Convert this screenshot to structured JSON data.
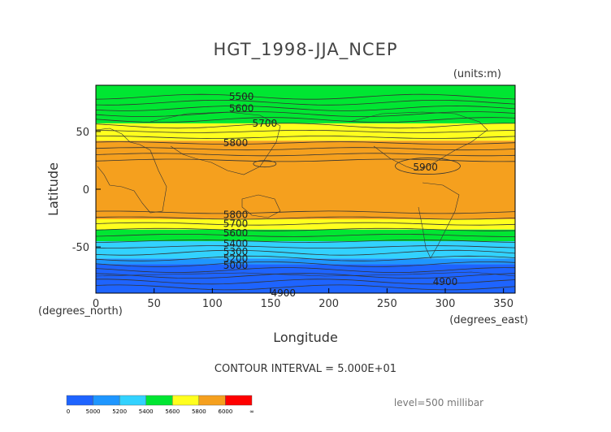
{
  "chart_data": {
    "type": "heatmap",
    "title": "HGT_1998-JJA_NCEP",
    "units": "(units:m)",
    "xlabel": "Longitude",
    "ylabel": "Latitude",
    "x_unit_label": "(degrees_east)",
    "y_unit_label": "(degrees_north)",
    "xlim": [
      0,
      360
    ],
    "ylim": [
      -90,
      90
    ],
    "x_ticks": [
      0,
      50,
      100,
      150,
      200,
      250,
      300,
      350
    ],
    "y_ticks": [
      -50,
      0,
      50
    ],
    "contour_interval_text": "CONTOUR INTERVAL = 5.000E+01",
    "level_text": "level=500 millibar",
    "colorbar": {
      "ticks": [
        "0",
        "5000",
        "5200",
        "5400",
        "5600",
        "5800",
        "6000",
        "∞"
      ],
      "colors": [
        "#1e64ff",
        "#1e96ff",
        "#32d2ff",
        "#00e632",
        "#ffff1e",
        "#f5a01e",
        "#ff0000"
      ]
    },
    "bands": [
      {
        "lat_from": 90,
        "lat_to": 57,
        "color": "#00e632"
      },
      {
        "lat_from": 57,
        "lat_to": 42,
        "color": "#ffff1e"
      },
      {
        "lat_from": 42,
        "lat_to": -26,
        "color": "#f5a01e"
      },
      {
        "lat_from": -26,
        "lat_to": -35,
        "color": "#ffff1e"
      },
      {
        "lat_from": -35,
        "lat_to": -45,
        "color": "#00e632"
      },
      {
        "lat_from": -45,
        "lat_to": -60,
        "color": "#32d2ff"
      },
      {
        "lat_from": -60,
        "lat_to": -65,
        "color": "#1e96ff"
      },
      {
        "lat_from": -65,
        "lat_to": -90,
        "color": "#1e64ff"
      }
    ],
    "contour_labels": [
      {
        "text": "5500",
        "lon": 125,
        "lat": 80
      },
      {
        "text": "5600",
        "lon": 125,
        "lat": 70
      },
      {
        "text": "5700",
        "lon": 145,
        "lat": 57
      },
      {
        "text": "5800",
        "lon": 120,
        "lat": 40
      },
      {
        "text": "5900",
        "lon": 283,
        "lat": 19
      },
      {
        "text": "5800",
        "lon": 120,
        "lat": -22
      },
      {
        "text": "5700",
        "lon": 120,
        "lat": -30
      },
      {
        "text": "5600",
        "lon": 120,
        "lat": -38
      },
      {
        "text": "5400",
        "lon": 120,
        "lat": -47
      },
      {
        "text": "5300",
        "lon": 120,
        "lat": -54
      },
      {
        "text": "5200",
        "lon": 120,
        "lat": -60
      },
      {
        "text": "5000",
        "lon": 120,
        "lat": -66
      },
      {
        "text": "4900",
        "lon": 300,
        "lat": -80
      },
      {
        "text": "4900",
        "lon": 161,
        "lat": -90
      }
    ]
  }
}
